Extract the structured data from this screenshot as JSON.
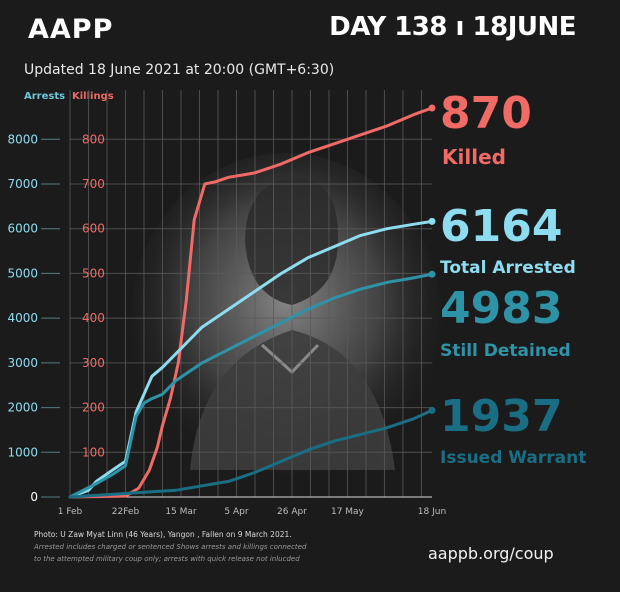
{
  "header": {
    "org": "AAPP",
    "day": "DAY 138 ı 18JUNE"
  },
  "updated": "Updated 18 June 2021 at 20:00 (GMT+6:30)",
  "axes": {
    "arrests_title": "Arrests",
    "killings_title": "Killings"
  },
  "stats": {
    "killed": {
      "value": "870",
      "label": "Killed"
    },
    "arrested": {
      "value": "6164",
      "label": "Total Arrested"
    },
    "detained": {
      "value": "4983",
      "label": "Still Detained"
    },
    "warrant": {
      "value": "1937",
      "label": "Issued Warrant"
    }
  },
  "footer": {
    "photo_credit": "Photo: U Zaw Myat Linn (46 Years), Yangon , Fallen on 9 March 2021.",
    "note1": "Arrested includes charged or sentenced Shows arrests and killings connected",
    "note2": "to the attempted military coup only; arrests with quick release not inlucded",
    "site": "aappb.org/coup"
  },
  "colors": {
    "killed": "#f06a66",
    "arrested": "#8edcef",
    "detained": "#2f93a8",
    "warrant": "#1a6e84",
    "background": "#1b1b1b"
  },
  "chart_data": {
    "type": "line",
    "x_ticks": [
      "1 Feb",
      "22Feb",
      "15 Mar",
      "5 Apr",
      "26 Apr",
      "17 May",
      "18 Jun"
    ],
    "x_tick_days": [
      0,
      21,
      42,
      63,
      84,
      105,
      137
    ],
    "y_left_ticks": [
      "0",
      "1000",
      "2000",
      "3000",
      "4000",
      "5000",
      "6000",
      "7000",
      "8000"
    ],
    "y_left_values": [
      0,
      1000,
      2000,
      3000,
      4000,
      5000,
      6000,
      7000,
      8000
    ],
    "y_right_ticks": [
      "100",
      "200",
      "300",
      "400",
      "500",
      "600",
      "700",
      "800"
    ],
    "y_right_values": [
      100,
      200,
      300,
      400,
      500,
      600,
      700,
      800
    ],
    "ylim_left": [
      0,
      8700
    ],
    "ylim_right": [
      0,
      870
    ],
    "xlim_days": [
      0,
      137
    ],
    "grid": true,
    "series": [
      {
        "name": "Killed",
        "axis": "right",
        "color": "#f06a66",
        "x": [
          0,
          21,
          26,
          30,
          33,
          35,
          38,
          41,
          44,
          47,
          51,
          55,
          60,
          65,
          70,
          80,
          90,
          100,
          110,
          120,
          130,
          137
        ],
        "y": [
          0,
          2,
          20,
          60,
          110,
          160,
          220,
          300,
          440,
          620,
          700,
          705,
          715,
          720,
          725,
          745,
          770,
          790,
          810,
          830,
          855,
          870
        ]
      },
      {
        "name": "Total Arrested",
        "axis": "left",
        "color": "#8edcef",
        "x": [
          0,
          7,
          10,
          16,
          21,
          25,
          28,
          31,
          35,
          40,
          45,
          50,
          60,
          70,
          80,
          90,
          100,
          110,
          120,
          130,
          137
        ],
        "y": [
          0,
          150,
          350,
          600,
          800,
          1900,
          2300,
          2700,
          2900,
          3200,
          3500,
          3800,
          4200,
          4600,
          5000,
          5350,
          5600,
          5850,
          6000,
          6100,
          6164
        ]
      },
      {
        "name": "Still Detained",
        "axis": "left",
        "color": "#2f93a8",
        "x": [
          0,
          10,
          16,
          21,
          25,
          28,
          31,
          35,
          40,
          45,
          50,
          60,
          70,
          80,
          90,
          100,
          110,
          120,
          130,
          137
        ],
        "y": [
          0,
          300,
          500,
          700,
          1800,
          2100,
          2200,
          2300,
          2600,
          2800,
          3000,
          3300,
          3600,
          3900,
          4200,
          4450,
          4650,
          4800,
          4900,
          4983
        ]
      },
      {
        "name": "Issued Warrant",
        "axis": "left",
        "color": "#1a6e84",
        "x": [
          0,
          40,
          50,
          60,
          70,
          80,
          90,
          100,
          110,
          120,
          130,
          137
        ],
        "y": [
          0,
          150,
          250,
          350,
          550,
          800,
          1050,
          1250,
          1400,
          1550,
          1750,
          1937
        ]
      }
    ]
  }
}
